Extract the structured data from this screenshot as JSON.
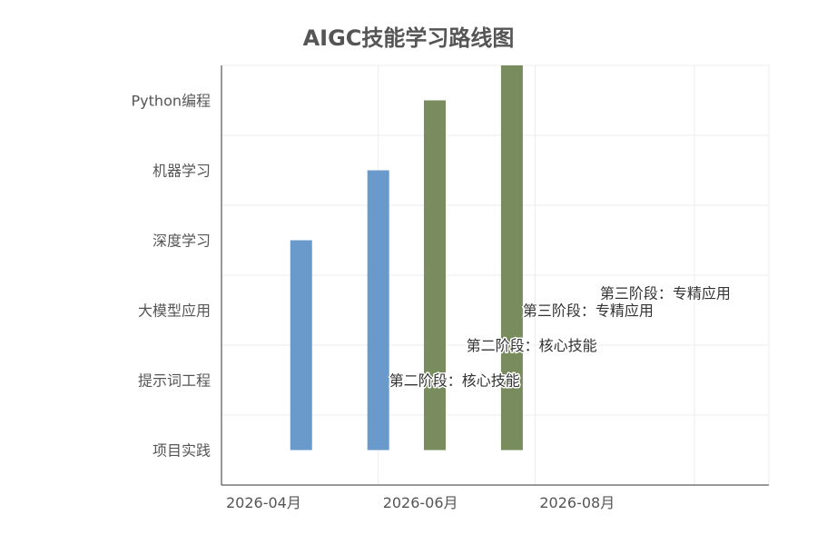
{
  "chart_data": {
    "type": "bar",
    "orientation": "vertical",
    "title": "AIGC技能学习路线图",
    "xlabel": "",
    "ylabel": "",
    "x_ticks": [
      "2026-04月",
      "2026-06月",
      "2026-08月"
    ],
    "categories": [
      "项目实践",
      "提示词工程",
      "大模型应用",
      "深度学习",
      "机器学习",
      "Python编程"
    ],
    "xlim": [
      "2026-03-01",
      "2026-09-30"
    ],
    "grid": true,
    "legend": "none",
    "bars": [
      {
        "x": "2026-04-01",
        "from": "项目实践",
        "to": "深度学习",
        "color": "#6a9acb"
      },
      {
        "x": "2026-05-01",
        "from": "项目实践",
        "to": "机器学习",
        "color": "#6a9acb"
      },
      {
        "x": "2026-05-23",
        "from": "项目实践",
        "to": "Python编程",
        "color": "#788c5d"
      },
      {
        "x": "2026-06-22",
        "from": "项目实践",
        "to": "top",
        "color": "#788c5d"
      }
    ],
    "annotations": [
      {
        "text": "第二阶段：核心技能",
        "x": "2026-05-01",
        "y": 1.5
      },
      {
        "text": "第二阶段：核心技能",
        "x": "2026-05-31",
        "y": 2.0
      },
      {
        "text": "第三阶段：专精应用",
        "x": "2026-06-22",
        "y": 2.5
      },
      {
        "text": "第三阶段：专精应用",
        "x": "2026-07-22",
        "y": 2.75
      }
    ]
  },
  "colors": {
    "blue_bar": "#6a9acb",
    "green_bar": "#788c5d",
    "text": "#555555",
    "grid": "#ececec",
    "axis": "#333333"
  }
}
